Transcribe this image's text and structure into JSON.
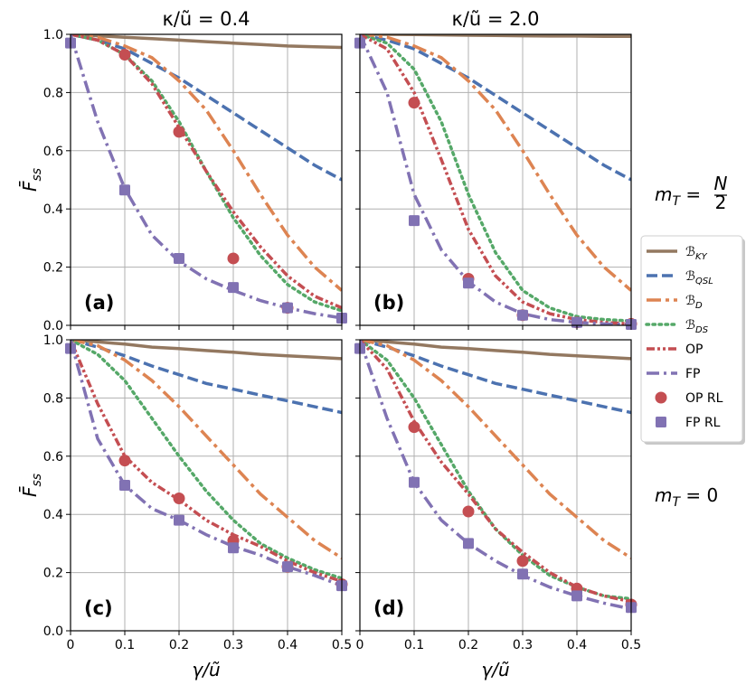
{
  "figure": {
    "row_labels": [
      {
        "text": "m_T = N/2",
        "main": "m",
        "sub": "T",
        "rhs": "= ",
        "frac_num": "N",
        "frac_den": "2"
      },
      {
        "text": "m_T = 0",
        "main": "m",
        "sub": "T",
        "rhs": "= 0"
      }
    ],
    "column_titles": [
      "κ/ũ = 0.4",
      "κ/ũ = 2.0"
    ],
    "xlabel": "γ/ũ",
    "ylabel": "F̄",
    "ylabel_sub": "ss"
  },
  "legend": [
    {
      "label": "ℬ",
      "sub": "KY",
      "color": "#937860",
      "style": "solid"
    },
    {
      "label": "ℬ",
      "sub": "QSL",
      "color": "#4c72b0",
      "style": "dashed"
    },
    {
      "label": "ℬ",
      "sub": "D",
      "color": "#dd8452",
      "style": "dashdot-long"
    },
    {
      "label": "ℬ",
      "sub": "DS",
      "color": "#55a868",
      "style": "dotted"
    },
    {
      "label": "OP",
      "sub": "",
      "color": "#c44e52",
      "style": "dashdotdot"
    },
    {
      "label": "FP",
      "sub": "",
      "color": "#8172b3",
      "style": "dashdot"
    },
    {
      "label": "OP RL",
      "sub": "",
      "color": "#c44e52",
      "style": "circle"
    },
    {
      "label": "FP RL",
      "sub": "",
      "color": "#8172b3",
      "style": "square"
    }
  ],
  "chart_data": [
    {
      "type": "line",
      "panel": "(a)",
      "title": "κ/ũ = 0.4",
      "row": "m_T = N/2",
      "xlim": [
        0,
        0.5
      ],
      "ylim": [
        0,
        1
      ],
      "grid": true,
      "xticks": [
        "0",
        "0.1",
        "0.2",
        "0.3",
        "0.4",
        "0.5"
      ],
      "yticks": [
        "0.0",
        "0.2",
        "0.4",
        "0.6",
        "0.8",
        "1.0"
      ],
      "x": [
        0,
        0.05,
        0.1,
        0.15,
        0.2,
        0.25,
        0.3,
        0.35,
        0.4,
        0.45,
        0.5
      ],
      "series": [
        {
          "name": "ℬ_KY",
          "values": [
            1.0,
            0.995,
            0.99,
            0.985,
            0.98,
            0.975,
            0.97,
            0.965,
            0.96,
            0.957,
            0.955
          ]
        },
        {
          "name": "ℬ_QSL",
          "values": [
            1.0,
            0.98,
            0.95,
            0.9,
            0.85,
            0.79,
            0.73,
            0.67,
            0.61,
            0.55,
            0.5
          ]
        },
        {
          "name": "ℬ_D",
          "values": [
            1.0,
            0.99,
            0.96,
            0.92,
            0.84,
            0.74,
            0.6,
            0.45,
            0.31,
            0.2,
            0.12
          ]
        },
        {
          "name": "ℬ_DS",
          "values": [
            1.0,
            0.98,
            0.93,
            0.84,
            0.7,
            0.53,
            0.37,
            0.24,
            0.14,
            0.08,
            0.05
          ]
        },
        {
          "name": "OP",
          "values": [
            1.0,
            0.98,
            0.93,
            0.83,
            0.68,
            0.53,
            0.39,
            0.27,
            0.17,
            0.1,
            0.06
          ]
        },
        {
          "name": "FP",
          "values": [
            1.0,
            0.7,
            0.47,
            0.31,
            0.22,
            0.16,
            0.12,
            0.085,
            0.06,
            0.04,
            0.025
          ]
        }
      ],
      "markers": [
        {
          "name": "OP RL",
          "x": [
            0.1,
            0.2,
            0.3,
            0.4
          ],
          "y": [
            0.93,
            0.665,
            0.23,
            0.06
          ]
        },
        {
          "name": "FP RL",
          "x": [
            0,
            0.1,
            0.2,
            0.3,
            0.4,
            0.5
          ],
          "y": [
            0.97,
            0.465,
            0.23,
            0.13,
            0.06,
            0.025
          ]
        }
      ]
    },
    {
      "type": "line",
      "panel": "(b)",
      "title": "κ/ũ = 2.0",
      "row": "m_T = N/2",
      "xlim": [
        0,
        0.5
      ],
      "ylim": [
        0,
        1
      ],
      "grid": true,
      "xticks": [
        "0",
        "0.1",
        "0.2",
        "0.3",
        "0.4",
        "0.5"
      ],
      "yticks": [
        "0.0",
        "0.2",
        "0.4",
        "0.6",
        "0.8",
        "1.0"
      ],
      "x": [
        0,
        0.05,
        0.1,
        0.15,
        0.2,
        0.25,
        0.3,
        0.35,
        0.4,
        0.45,
        0.5
      ],
      "series": [
        {
          "name": "ℬ_KY",
          "values": [
            1.0,
            1.0,
            0.999,
            0.998,
            0.997,
            0.996,
            0.995,
            0.994,
            0.994,
            0.993,
            0.993
          ]
        },
        {
          "name": "ℬ_QSL",
          "values": [
            1.0,
            0.98,
            0.95,
            0.9,
            0.85,
            0.79,
            0.73,
            0.67,
            0.61,
            0.55,
            0.5
          ]
        },
        {
          "name": "ℬ_D",
          "values": [
            1.0,
            0.99,
            0.96,
            0.92,
            0.84,
            0.74,
            0.6,
            0.45,
            0.31,
            0.2,
            0.12
          ]
        },
        {
          "name": "ℬ_DS",
          "values": [
            1.0,
            0.97,
            0.88,
            0.7,
            0.45,
            0.25,
            0.12,
            0.06,
            0.03,
            0.02,
            0.015
          ]
        },
        {
          "name": "OP",
          "values": [
            1.0,
            0.95,
            0.8,
            0.57,
            0.33,
            0.17,
            0.08,
            0.04,
            0.02,
            0.01,
            0.005
          ]
        },
        {
          "name": "FP",
          "values": [
            1.0,
            0.8,
            0.45,
            0.26,
            0.15,
            0.08,
            0.04,
            0.02,
            0.01,
            0.005,
            0.003
          ]
        }
      ],
      "markers": [
        {
          "name": "OP RL",
          "x": [
            0.1,
            0.2,
            0.3,
            0.4,
            0.5
          ],
          "y": [
            0.765,
            0.16,
            0.035,
            0.01,
            0.005
          ]
        },
        {
          "name": "FP RL",
          "x": [
            0,
            0.1,
            0.2,
            0.3,
            0.4,
            0.5
          ],
          "y": [
            0.97,
            0.36,
            0.145,
            0.035,
            0.01,
            0.003
          ]
        }
      ]
    },
    {
      "type": "line",
      "panel": "(c)",
      "title": "",
      "row": "m_T = 0",
      "xlim": [
        0,
        0.5
      ],
      "ylim": [
        0,
        1
      ],
      "grid": true,
      "xticks": [
        "0",
        "0.1",
        "0.2",
        "0.3",
        "0.4",
        "0.5"
      ],
      "yticks": [
        "0.0",
        "0.2",
        "0.4",
        "0.6",
        "0.8",
        "1.0"
      ],
      "x": [
        0,
        0.05,
        0.1,
        0.15,
        0.2,
        0.25,
        0.3,
        0.35,
        0.4,
        0.45,
        0.5
      ],
      "series": [
        {
          "name": "ℬ_KY",
          "values": [
            1.0,
            0.993,
            0.985,
            0.975,
            0.97,
            0.963,
            0.957,
            0.95,
            0.945,
            0.94,
            0.935
          ]
        },
        {
          "name": "ℬ_QSL",
          "values": [
            1.0,
            0.975,
            0.945,
            0.91,
            0.88,
            0.85,
            0.83,
            0.81,
            0.79,
            0.77,
            0.75
          ]
        },
        {
          "name": "ℬ_D",
          "values": [
            1.0,
            0.98,
            0.93,
            0.86,
            0.77,
            0.67,
            0.57,
            0.47,
            0.39,
            0.31,
            0.25
          ]
        },
        {
          "name": "ℬ_DS",
          "values": [
            1.0,
            0.95,
            0.86,
            0.73,
            0.6,
            0.48,
            0.38,
            0.3,
            0.25,
            0.21,
            0.18
          ]
        },
        {
          "name": "OP",
          "values": [
            1.0,
            0.78,
            0.6,
            0.51,
            0.45,
            0.38,
            0.33,
            0.29,
            0.24,
            0.2,
            0.17
          ]
        },
        {
          "name": "FP",
          "values": [
            1.0,
            0.66,
            0.5,
            0.42,
            0.38,
            0.33,
            0.29,
            0.26,
            0.22,
            0.19,
            0.155
          ]
        }
      ],
      "markers": [
        {
          "name": "OP RL",
          "x": [
            0.1,
            0.2,
            0.3,
            0.4,
            0.5
          ],
          "y": [
            0.585,
            0.455,
            0.31,
            0.22,
            0.16
          ]
        },
        {
          "name": "FP RL",
          "x": [
            0,
            0.1,
            0.2,
            0.3,
            0.4,
            0.5
          ],
          "y": [
            0.97,
            0.5,
            0.38,
            0.285,
            0.22,
            0.155
          ]
        }
      ]
    },
    {
      "type": "line",
      "panel": "(d)",
      "title": "",
      "row": "m_T = 0",
      "xlim": [
        0,
        0.5
      ],
      "ylim": [
        0,
        1
      ],
      "grid": true,
      "xticks": [
        "0",
        "0.1",
        "0.2",
        "0.3",
        "0.4",
        "0.5"
      ],
      "yticks": [
        "0.0",
        "0.2",
        "0.4",
        "0.6",
        "0.8",
        "1.0"
      ],
      "x": [
        0,
        0.05,
        0.1,
        0.15,
        0.2,
        0.25,
        0.3,
        0.35,
        0.4,
        0.45,
        0.5
      ],
      "series": [
        {
          "name": "ℬ_KY",
          "values": [
            1.0,
            0.993,
            0.985,
            0.975,
            0.97,
            0.963,
            0.957,
            0.95,
            0.945,
            0.94,
            0.935
          ]
        },
        {
          "name": "ℬ_QSL",
          "values": [
            1.0,
            0.975,
            0.945,
            0.91,
            0.88,
            0.85,
            0.83,
            0.81,
            0.79,
            0.77,
            0.75
          ]
        },
        {
          "name": "ℬ_D",
          "values": [
            1.0,
            0.98,
            0.93,
            0.86,
            0.77,
            0.67,
            0.57,
            0.47,
            0.39,
            0.31,
            0.25
          ]
        },
        {
          "name": "ℬ_DS",
          "values": [
            1.0,
            0.93,
            0.8,
            0.64,
            0.48,
            0.35,
            0.26,
            0.19,
            0.15,
            0.12,
            0.11
          ]
        },
        {
          "name": "OP",
          "values": [
            1.0,
            0.9,
            0.72,
            0.58,
            0.47,
            0.35,
            0.27,
            0.2,
            0.15,
            0.12,
            0.1
          ]
        },
        {
          "name": "FP",
          "values": [
            1.0,
            0.73,
            0.51,
            0.38,
            0.3,
            0.24,
            0.19,
            0.15,
            0.12,
            0.095,
            0.075
          ]
        }
      ],
      "markers": [
        {
          "name": "OP RL",
          "x": [
            0.1,
            0.2,
            0.3,
            0.4,
            0.5
          ],
          "y": [
            0.7,
            0.41,
            0.24,
            0.145,
            0.09
          ]
        },
        {
          "name": "FP RL",
          "x": [
            0,
            0.1,
            0.2,
            0.3,
            0.4,
            0.5
          ],
          "y": [
            0.97,
            0.51,
            0.3,
            0.195,
            0.12,
            0.08
          ]
        }
      ]
    }
  ]
}
